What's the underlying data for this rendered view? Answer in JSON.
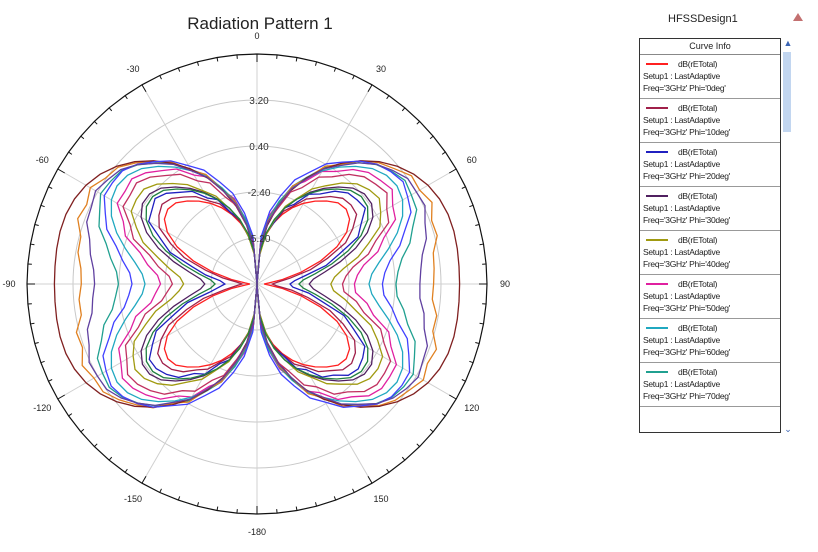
{
  "chart_data": {
    "type": "polar-line",
    "title": "Radiation Pattern 1",
    "design": "HFSSDesign1",
    "angle_ticks": [
      "0",
      "30",
      "60",
      "90",
      "120",
      "150",
      "-180",
      "-150",
      "-120",
      "-90",
      "-60",
      "-30"
    ],
    "radial_ticks": [
      "3.20",
      "0.40",
      "-2.40",
      "-5.20"
    ],
    "radial_range": [
      -8.0,
      6.0
    ],
    "legend_header": "Curve Info",
    "series": [
      {
        "name": "dB(rETotal)",
        "setup": "Setup1 : LastAdaptive",
        "params": "Freq='3GHz' Phi='0deg'",
        "color": "#ff2020",
        "peak_db": 0.6
      },
      {
        "name": "dB(rETotal)",
        "setup": "Setup1 : LastAdaptive",
        "params": "Freq='3GHz' Phi='10deg'",
        "color": "#a0204a",
        "peak_db": 1.2
      },
      {
        "name": "dB(rETotal)",
        "setup": "Setup1 : LastAdaptive",
        "params": "Freq='3GHz' Phi='20deg'",
        "color": "#2020c0",
        "peak_db": 1.9
      },
      {
        "name": "dB(rETotal)",
        "setup": "Setup1 : LastAdaptive",
        "params": "Freq='3GHz' Phi='30deg'",
        "color": "#502060",
        "peak_db": 2.6
      },
      {
        "name": "dB(rETotal)",
        "setup": "Setup1 : LastAdaptive",
        "params": "Freq='3GHz' Phi='40deg'",
        "color": "#a09a10",
        "peak_db": 3.2
      },
      {
        "name": "dB(rETotal)",
        "setup": "Setup1 : LastAdaptive",
        "params": "Freq='3GHz' Phi='50deg'",
        "color": "#e020a0",
        "peak_db": 3.8
      },
      {
        "name": "dB(rETotal)",
        "setup": "Setup1 : LastAdaptive",
        "params": "Freq='3GHz' Phi='60deg'",
        "color": "#20a8c0",
        "peak_db": 4.4
      },
      {
        "name": "dB(rETotal)",
        "setup": "Setup1 : LastAdaptive",
        "params": "Freq='3GHz' Phi='70deg'",
        "color": "#20a090",
        "peak_db": 5.0
      }
    ],
    "extra_curve_colors": [
      "#e08020",
      "#802020",
      "#4040ff",
      "#c03060",
      "#208040",
      "#6040a0"
    ]
  }
}
